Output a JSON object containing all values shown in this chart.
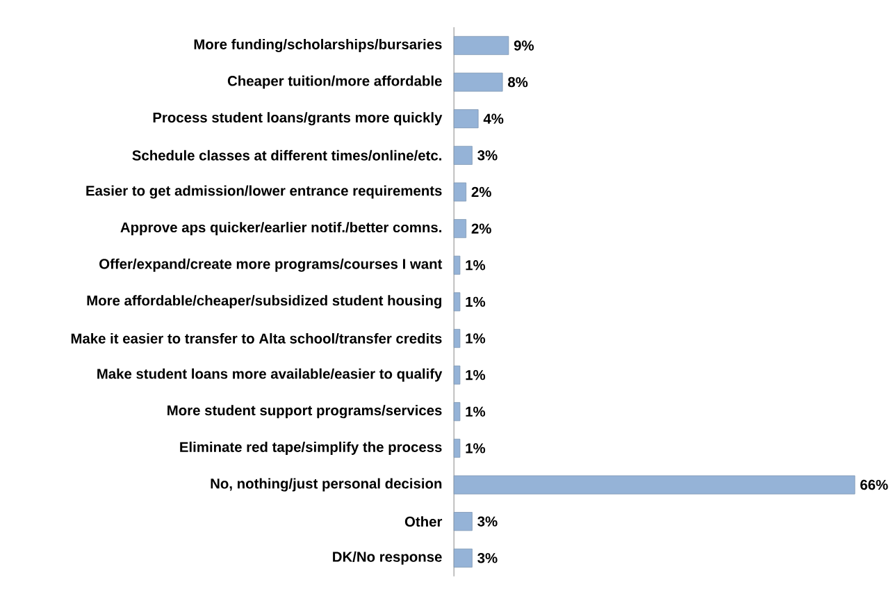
{
  "chart_data": {
    "type": "bar",
    "orientation": "horizontal",
    "categories": [
      "More funding/scholarships/bursaries",
      "Cheaper tuition/more affordable",
      "Process student loans/grants more quickly",
      "Schedule classes at different times/online/etc.",
      "Easier to get admission/lower entrance requirements",
      "Approve aps quicker/earlier notif./better comns.",
      "Offer/expand/create more programs/courses I want",
      "More affordable/cheaper/subsidized student housing",
      "Make it easier to transfer to Alta school/transfer credits",
      "Make student loans more available/easier to qualify",
      "More student support programs/services",
      "Eliminate red tape/simplify the process",
      "No, nothing/just personal decision",
      "Other",
      "DK/No response"
    ],
    "values": [
      9,
      8,
      4,
      3,
      2,
      2,
      1,
      1,
      1,
      1,
      1,
      1,
      66,
      3,
      3
    ],
    "value_labels": [
      "9%",
      "8%",
      "4%",
      "3%",
      "2%",
      "2%",
      "1%",
      "1%",
      "1%",
      "1%",
      "1%",
      "1%",
      "66%",
      "3%",
      "3%"
    ],
    "color": "#95b3d7",
    "xlim": [
      0,
      66
    ],
    "tick_labels": "y"
  }
}
